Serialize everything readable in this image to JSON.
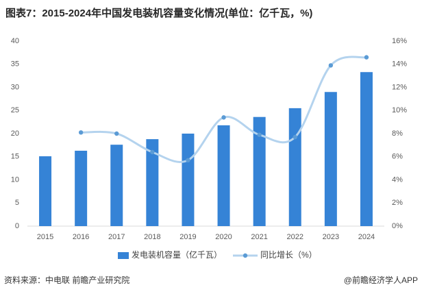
{
  "chart_data": {
    "type": "bar_line",
    "title": "图表7：2015-2024年中国发电装机容量变化情况(单位：亿千瓦，%)",
    "categories": [
      "2015",
      "2016",
      "2017",
      "2018",
      "2019",
      "2020",
      "2021",
      "2022",
      "2023",
      "2024"
    ],
    "series": [
      {
        "name": "发电装机容量（亿千瓦）",
        "color": "#3583d6",
        "type": "bar",
        "values": [
          15.1,
          16.3,
          17.6,
          18.8,
          20.0,
          21.8,
          23.6,
          25.5,
          29.0,
          33.3
        ]
      },
      {
        "name": "同比增长（%）",
        "color": "#5b9bd5",
        "line_color": "#b4d3ee",
        "type": "line",
        "axis": "y2",
        "values": [
          null,
          8.1,
          8.0,
          6.4,
          5.7,
          9.4,
          7.9,
          7.7,
          13.9,
          14.6
        ]
      }
    ],
    "ylim": [
      0,
      40
    ],
    "yticks": [
      0,
      5,
      10,
      15,
      20,
      25,
      30,
      35,
      40
    ],
    "y2lim": [
      0,
      16
    ],
    "y2ticks": [
      {
        "value": 0,
        "label": "0%"
      },
      {
        "value": 2,
        "label": "2%"
      },
      {
        "value": 4,
        "label": "4%"
      },
      {
        "value": 6,
        "label": "6%"
      },
      {
        "value": 8,
        "label": "8%"
      },
      {
        "value": 10,
        "label": "10%"
      },
      {
        "value": 12,
        "label": "12%"
      },
      {
        "value": 14,
        "label": "14%"
      },
      {
        "value": 16,
        "label": "16%"
      }
    ],
    "source": "资料来源：中电联 前瞻产业研究院",
    "credit": "@前瞻经济学人APP"
  }
}
